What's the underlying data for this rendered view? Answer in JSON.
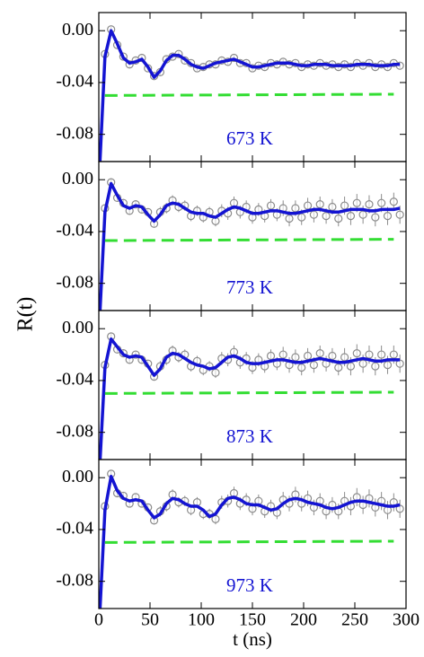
{
  "ylabel": "R(t)",
  "chart_data": [
    {
      "type": "line",
      "annotation": "673 K",
      "x": [
        0,
        6,
        12,
        18,
        24,
        30,
        36,
        42,
        48,
        54,
        60,
        66,
        72,
        78,
        84,
        90,
        96,
        102,
        108,
        114,
        120,
        126,
        132,
        138,
        144,
        150,
        156,
        162,
        168,
        174,
        180,
        186,
        192,
        198,
        204,
        210,
        216,
        222,
        228,
        234,
        240,
        246,
        252,
        258,
        264,
        270,
        276,
        282,
        288,
        294
      ],
      "xlim": [
        0,
        300
      ],
      "xticks": [
        0,
        50,
        100,
        150,
        200,
        250,
        300
      ],
      "ylim": [
        -0.101,
        0.014
      ],
      "yticks": [
        {
          "value": 0,
          "label": "0.00"
        },
        -0.04,
        -0.08
      ],
      "series": [
        {
          "marker": "circle",
          "color": "#8c8c8c",
          "values": [
            -0.11,
            -0.018,
            0.001,
            -0.011,
            -0.02,
            -0.026,
            -0.023,
            -0.021,
            -0.029,
            -0.035,
            -0.032,
            -0.022,
            -0.02,
            -0.018,
            -0.023,
            -0.025,
            -0.029,
            -0.028,
            -0.026,
            -0.026,
            -0.023,
            -0.024,
            -0.021,
            -0.025,
            -0.025,
            -0.029,
            -0.027,
            -0.028,
            -0.025,
            -0.026,
            -0.024,
            -0.026,
            -0.025,
            -0.028,
            -0.026,
            -0.027,
            -0.025,
            -0.027,
            -0.026,
            -0.028,
            -0.026,
            -0.028,
            -0.025,
            -0.027,
            -0.025,
            -0.028,
            -0.026,
            -0.028,
            -0.025,
            -0.027
          ],
          "errors": [
            0.002,
            0.002,
            0.002,
            0.002,
            0.002,
            0.002,
            0.002,
            0.002,
            0.002,
            0.002,
            0.002,
            0.002,
            0.002,
            0.002,
            0.002,
            0.002,
            0.002,
            0.002,
            0.002,
            0.002,
            0.002,
            0.002,
            0.002,
            0.002,
            0.002,
            0.002,
            0.002,
            0.002,
            0.002,
            0.002,
            0.002,
            0.002,
            0.002,
            0.002,
            0.002,
            0.002,
            0.002,
            0.002,
            0.002,
            0.002,
            0.002,
            0.002,
            0.002,
            0.002,
            0.002,
            0.002,
            0.002,
            0.002,
            0.002,
            0.002
          ]
        },
        {
          "line": "solid",
          "color": "#1414d2",
          "values": [
            -0.12,
            -0.02,
            0.0,
            -0.01,
            -0.021,
            -0.025,
            -0.024,
            -0.022,
            -0.028,
            -0.036,
            -0.031,
            -0.023,
            -0.019,
            -0.019,
            -0.022,
            -0.026,
            -0.028,
            -0.029,
            -0.027,
            -0.025,
            -0.024,
            -0.023,
            -0.022,
            -0.024,
            -0.026,
            -0.028,
            -0.028,
            -0.027,
            -0.026,
            -0.025,
            -0.025,
            -0.025,
            -0.026,
            -0.027,
            -0.027,
            -0.026,
            -0.026,
            -0.026,
            -0.027,
            -0.027,
            -0.027,
            -0.027,
            -0.026,
            -0.026,
            -0.026,
            -0.027,
            -0.027,
            -0.027,
            -0.026,
            -0.026
          ]
        },
        {
          "line": "dashed",
          "color": "#33dd33",
          "x": [
            6,
            288
          ],
          "values": [
            -0.05,
            -0.049
          ]
        }
      ]
    },
    {
      "type": "line",
      "annotation": "773 K",
      "x": [
        0,
        6,
        12,
        18,
        24,
        30,
        36,
        42,
        48,
        54,
        60,
        66,
        72,
        78,
        84,
        90,
        96,
        102,
        108,
        114,
        120,
        126,
        132,
        138,
        144,
        150,
        156,
        162,
        168,
        174,
        180,
        186,
        192,
        198,
        204,
        210,
        216,
        222,
        228,
        234,
        240,
        246,
        252,
        258,
        264,
        270,
        276,
        282,
        288,
        294
      ],
      "xlim": [
        0,
        300
      ],
      "xticks": [
        0,
        50,
        100,
        150,
        200,
        250,
        300
      ],
      "ylim": [
        -0.101,
        0.014
      ],
      "yticks": [
        {
          "value": 0,
          "label": "0.00"
        },
        -0.04,
        -0.08
      ],
      "series": [
        {
          "marker": "circle",
          "color": "#8c8c8c",
          "values": [
            -0.11,
            -0.022,
            -0.002,
            -0.014,
            -0.018,
            -0.024,
            -0.019,
            -0.023,
            -0.025,
            -0.034,
            -0.025,
            -0.022,
            -0.016,
            -0.021,
            -0.02,
            -0.028,
            -0.024,
            -0.029,
            -0.025,
            -0.032,
            -0.024,
            -0.026,
            -0.018,
            -0.025,
            -0.021,
            -0.029,
            -0.023,
            -0.028,
            -0.02,
            -0.027,
            -0.022,
            -0.03,
            -0.022,
            -0.029,
            -0.02,
            -0.027,
            -0.019,
            -0.028,
            -0.021,
            -0.03,
            -0.02,
            -0.028,
            -0.018,
            -0.027,
            -0.019,
            -0.029,
            -0.018,
            -0.028,
            -0.017,
            -0.027
          ],
          "errors": [
            0.003,
            0.003,
            0.003,
            0.003,
            0.003,
            0.003,
            0.003,
            0.003,
            0.003,
            0.003,
            0.004,
            0.004,
            0.004,
            0.004,
            0.004,
            0.004,
            0.004,
            0.004,
            0.004,
            0.004,
            0.005,
            0.005,
            0.005,
            0.005,
            0.005,
            0.005,
            0.005,
            0.005,
            0.005,
            0.005,
            0.006,
            0.006,
            0.006,
            0.006,
            0.006,
            0.006,
            0.006,
            0.006,
            0.006,
            0.006,
            0.007,
            0.007,
            0.007,
            0.007,
            0.007,
            0.007,
            0.007,
            0.007,
            0.007,
            0.007
          ]
        },
        {
          "line": "solid",
          "color": "#1414d2",
          "values": [
            -0.12,
            -0.025,
            -0.003,
            -0.012,
            -0.02,
            -0.022,
            -0.02,
            -0.021,
            -0.027,
            -0.032,
            -0.027,
            -0.02,
            -0.018,
            -0.019,
            -0.022,
            -0.025,
            -0.026,
            -0.026,
            -0.028,
            -0.029,
            -0.026,
            -0.023,
            -0.021,
            -0.022,
            -0.024,
            -0.026,
            -0.026,
            -0.025,
            -0.024,
            -0.024,
            -0.025,
            -0.026,
            -0.026,
            -0.025,
            -0.024,
            -0.023,
            -0.023,
            -0.024,
            -0.025,
            -0.025,
            -0.024,
            -0.023,
            -0.023,
            -0.023,
            -0.024,
            -0.024,
            -0.023,
            -0.023,
            -0.023,
            -0.022
          ]
        },
        {
          "line": "dashed",
          "color": "#33dd33",
          "x": [
            6,
            288
          ],
          "values": [
            -0.047,
            -0.046
          ]
        }
      ]
    },
    {
      "type": "line",
      "annotation": "873 K",
      "x": [
        0,
        6,
        12,
        18,
        24,
        30,
        36,
        42,
        48,
        54,
        60,
        66,
        72,
        78,
        84,
        90,
        96,
        102,
        108,
        114,
        120,
        126,
        132,
        138,
        144,
        150,
        156,
        162,
        168,
        174,
        180,
        186,
        192,
        198,
        204,
        210,
        216,
        222,
        228,
        234,
        240,
        246,
        252,
        258,
        264,
        270,
        276,
        282,
        288,
        294
      ],
      "xlim": [
        0,
        300
      ],
      "xticks": [
        0,
        50,
        100,
        150,
        200,
        250,
        300
      ],
      "ylim": [
        -0.101,
        0.014
      ],
      "yticks": [
        {
          "value": 0,
          "label": "0.00"
        },
        -0.04,
        -0.08
      ],
      "series": [
        {
          "marker": "circle",
          "color": "#8c8c8c",
          "values": [
            -0.11,
            -0.028,
            -0.006,
            -0.016,
            -0.019,
            -0.024,
            -0.02,
            -0.024,
            -0.027,
            -0.037,
            -0.029,
            -0.024,
            -0.017,
            -0.022,
            -0.02,
            -0.029,
            -0.025,
            -0.032,
            -0.029,
            -0.034,
            -0.023,
            -0.024,
            -0.018,
            -0.026,
            -0.023,
            -0.03,
            -0.024,
            -0.029,
            -0.021,
            -0.027,
            -0.02,
            -0.028,
            -0.022,
            -0.03,
            -0.021,
            -0.028,
            -0.019,
            -0.027,
            -0.021,
            -0.03,
            -0.022,
            -0.029,
            -0.019,
            -0.027,
            -0.02,
            -0.029,
            -0.02,
            -0.028,
            -0.02,
            -0.027
          ],
          "errors": [
            0.003,
            0.003,
            0.003,
            0.003,
            0.003,
            0.003,
            0.003,
            0.003,
            0.003,
            0.003,
            0.004,
            0.004,
            0.004,
            0.004,
            0.004,
            0.004,
            0.004,
            0.004,
            0.004,
            0.004,
            0.005,
            0.005,
            0.005,
            0.005,
            0.005,
            0.005,
            0.005,
            0.005,
            0.005,
            0.005,
            0.006,
            0.006,
            0.006,
            0.006,
            0.006,
            0.006,
            0.006,
            0.006,
            0.006,
            0.006,
            0.007,
            0.007,
            0.007,
            0.007,
            0.007,
            0.007,
            0.007,
            0.007,
            0.007,
            0.007
          ]
        },
        {
          "line": "solid",
          "color": "#1414d2",
          "values": [
            -0.12,
            -0.03,
            -0.008,
            -0.014,
            -0.02,
            -0.022,
            -0.021,
            -0.022,
            -0.029,
            -0.036,
            -0.031,
            -0.022,
            -0.019,
            -0.02,
            -0.023,
            -0.026,
            -0.028,
            -0.029,
            -0.031,
            -0.03,
            -0.026,
            -0.022,
            -0.021,
            -0.023,
            -0.026,
            -0.027,
            -0.027,
            -0.026,
            -0.025,
            -0.024,
            -0.024,
            -0.025,
            -0.026,
            -0.026,
            -0.025,
            -0.024,
            -0.023,
            -0.024,
            -0.025,
            -0.026,
            -0.026,
            -0.025,
            -0.024,
            -0.023,
            -0.024,
            -0.025,
            -0.025,
            -0.024,
            -0.024,
            -0.024
          ]
        },
        {
          "line": "dashed",
          "color": "#33dd33",
          "x": [
            6,
            288
          ],
          "values": [
            -0.05,
            -0.049
          ]
        }
      ]
    },
    {
      "type": "line",
      "annotation": "973 K",
      "xlabel": "t (ns)",
      "x": [
        0,
        6,
        12,
        18,
        24,
        30,
        36,
        42,
        48,
        54,
        60,
        66,
        72,
        78,
        84,
        90,
        96,
        102,
        108,
        114,
        120,
        126,
        132,
        138,
        144,
        150,
        156,
        162,
        168,
        174,
        180,
        186,
        192,
        198,
        204,
        210,
        216,
        222,
        228,
        234,
        240,
        246,
        252,
        258,
        264,
        270,
        276,
        282,
        288,
        294
      ],
      "xlim": [
        0,
        300
      ],
      "xticks": [
        0,
        50,
        100,
        150,
        200,
        250,
        300
      ],
      "ylim": [
        -0.101,
        0.014
      ],
      "yticks": [
        {
          "value": 0,
          "label": "0.00"
        },
        -0.04,
        -0.08
      ],
      "series": [
        {
          "marker": "circle",
          "color": "#8c8c8c",
          "values": [
            -0.11,
            -0.022,
            0.003,
            -0.012,
            -0.014,
            -0.02,
            -0.015,
            -0.02,
            -0.023,
            -0.033,
            -0.026,
            -0.022,
            -0.013,
            -0.019,
            -0.018,
            -0.025,
            -0.019,
            -0.028,
            -0.028,
            -0.032,
            -0.019,
            -0.018,
            -0.012,
            -0.02,
            -0.017,
            -0.024,
            -0.018,
            -0.026,
            -0.022,
            -0.027,
            -0.017,
            -0.02,
            -0.013,
            -0.02,
            -0.016,
            -0.023,
            -0.018,
            -0.026,
            -0.021,
            -0.026,
            -0.018,
            -0.022,
            -0.015,
            -0.021,
            -0.016,
            -0.023,
            -0.018,
            -0.025,
            -0.019,
            -0.024
          ],
          "errors": [
            0.003,
            0.003,
            0.003,
            0.003,
            0.003,
            0.003,
            0.003,
            0.003,
            0.003,
            0.003,
            0.004,
            0.004,
            0.004,
            0.004,
            0.004,
            0.004,
            0.004,
            0.004,
            0.004,
            0.004,
            0.005,
            0.005,
            0.005,
            0.005,
            0.005,
            0.005,
            0.005,
            0.005,
            0.005,
            0.005,
            0.006,
            0.006,
            0.006,
            0.006,
            0.006,
            0.006,
            0.006,
            0.006,
            0.006,
            0.006,
            0.007,
            0.007,
            0.007,
            0.007,
            0.007,
            0.007,
            0.007,
            0.007,
            0.007,
            0.007
          ]
        },
        {
          "line": "solid",
          "color": "#1414d2",
          "values": [
            -0.12,
            -0.025,
            0.001,
            -0.01,
            -0.016,
            -0.018,
            -0.017,
            -0.018,
            -0.025,
            -0.031,
            -0.028,
            -0.02,
            -0.016,
            -0.017,
            -0.02,
            -0.022,
            -0.022,
            -0.025,
            -0.03,
            -0.028,
            -0.021,
            -0.016,
            -0.015,
            -0.017,
            -0.02,
            -0.021,
            -0.021,
            -0.023,
            -0.025,
            -0.024,
            -0.02,
            -0.017,
            -0.016,
            -0.017,
            -0.019,
            -0.02,
            -0.021,
            -0.023,
            -0.024,
            -0.023,
            -0.021,
            -0.019,
            -0.018,
            -0.018,
            -0.019,
            -0.02,
            -0.021,
            -0.022,
            -0.022,
            -0.021
          ]
        },
        {
          "line": "dashed",
          "color": "#33dd33",
          "x": [
            6,
            288
          ],
          "values": [
            -0.05,
            -0.049
          ]
        }
      ]
    }
  ]
}
